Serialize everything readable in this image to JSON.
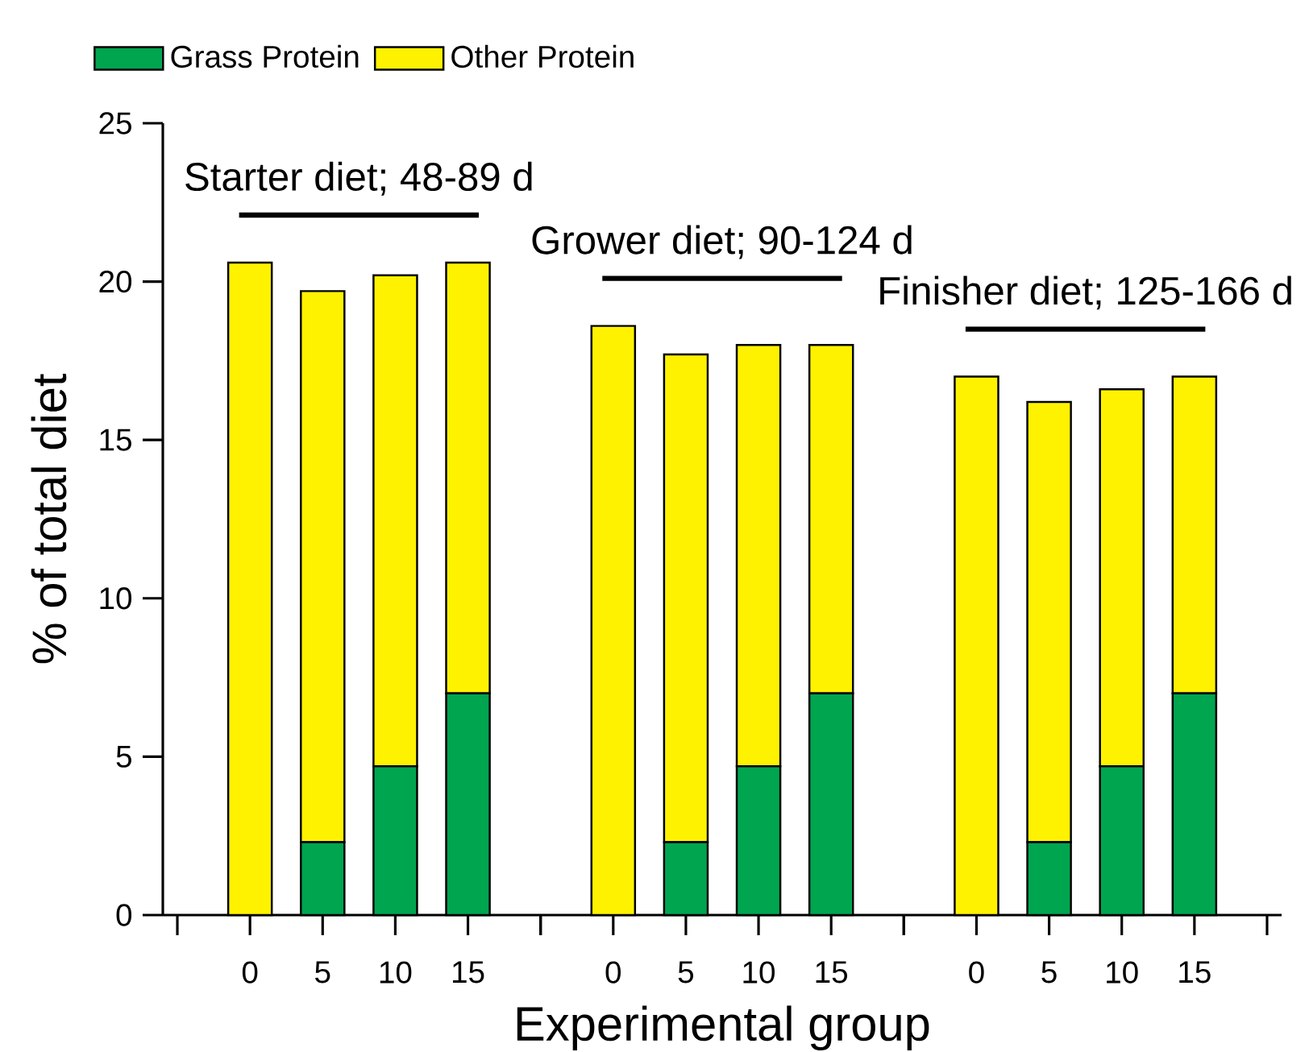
{
  "chart_data": {
    "type": "bar",
    "stacked": true,
    "xlabel": "Experimental group",
    "ylabel": "% of total diet",
    "categories": [
      "0",
      "5",
      "10",
      "15",
      null,
      "0",
      "5",
      "10",
      "15",
      null,
      "0",
      "5",
      "10",
      "15"
    ],
    "series": [
      {
        "name": "Grass Protein",
        "color": "#00a54f",
        "values": [
          0,
          2.3,
          4.7,
          7.0,
          null,
          0,
          2.3,
          4.7,
          7.0,
          null,
          0,
          2.3,
          4.7,
          7.0
        ]
      },
      {
        "name": "Other Protein",
        "color": "#fff200",
        "values": [
          20.6,
          17.4,
          15.5,
          13.6,
          null,
          18.6,
          15.4,
          13.3,
          11.0,
          null,
          17.0,
          13.9,
          11.9,
          10.0
        ]
      }
    ],
    "ylim": [
      0,
      25
    ],
    "yticks": [
      0,
      5,
      10,
      15,
      20,
      25
    ],
    "legend": "top left",
    "annotations": [
      "Starter diet; 48-89 d",
      "Grower diet; 90-124 d",
      "Finisher diet; 125-166 d"
    ]
  }
}
